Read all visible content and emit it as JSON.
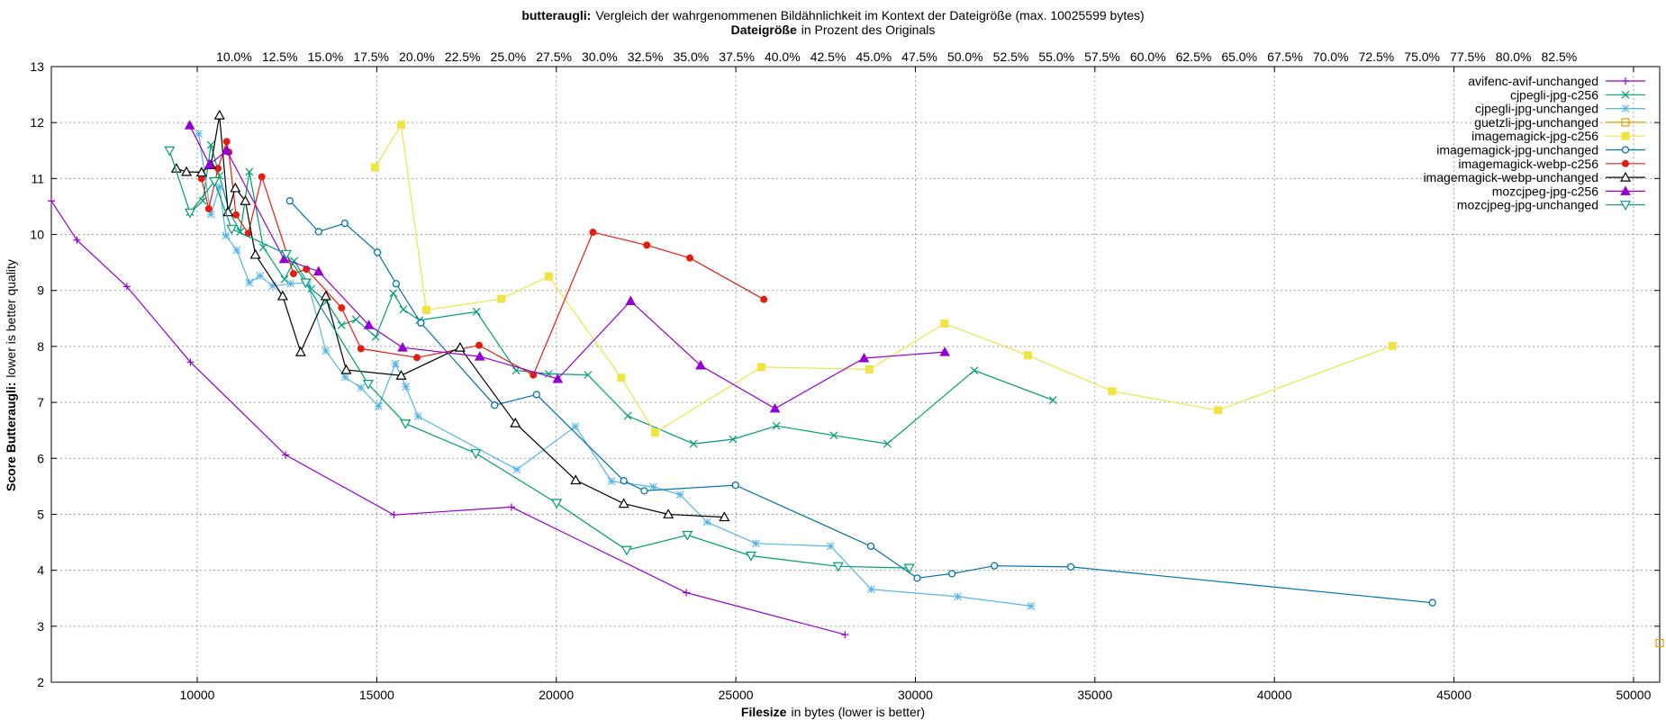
{
  "chart_data": {
    "type": "line",
    "title_bold": "butteraugli:",
    "title_rest": "Vergleich der wahrgenommenen Bildähnlichkeit im Kontext der Dateigröße (max. 10025599 bytes)",
    "x2label_bold": "Dateigröße",
    "x2label_rest": "in Prozent des Originals",
    "xlabel_bold": "Filesize",
    "xlabel_rest": "in bytes (lower is better)",
    "ylabel_bold": "Score Butteraugli:",
    "ylabel_rest": "lower is better quality",
    "xlim": [
      5937,
      50729
    ],
    "ylim": [
      2,
      13
    ],
    "grid": true,
    "legend_position": "top-right",
    "x_ticks": [
      {
        "value": 10000,
        "label": "10000"
      },
      {
        "value": 15000,
        "label": "15000"
      },
      {
        "value": 20000,
        "label": "20000"
      },
      {
        "value": 25000,
        "label": "25000"
      },
      {
        "value": 30000,
        "label": "30000"
      },
      {
        "value": 35000,
        "label": "35000"
      },
      {
        "value": 40000,
        "label": "40000"
      },
      {
        "value": 45000,
        "label": "45000"
      },
      {
        "value": 50000,
        "label": "50000"
      }
    ],
    "y_ticks": [
      {
        "value": 2,
        "label": "2"
      },
      {
        "value": 3,
        "label": "3"
      },
      {
        "value": 4,
        "label": "4"
      },
      {
        "value": 5,
        "label": "5"
      },
      {
        "value": 6,
        "label": "6"
      },
      {
        "value": 7,
        "label": "7"
      },
      {
        "value": 8,
        "label": "8"
      },
      {
        "value": 9,
        "label": "9"
      },
      {
        "value": 10,
        "label": "10"
      },
      {
        "value": 11,
        "label": "11"
      },
      {
        "value": 12,
        "label": "12"
      },
      {
        "value": 13,
        "label": "13"
      }
    ],
    "x2_ticks": [
      {
        "value": 10.0,
        "label": "10.0%"
      },
      {
        "value": 12.5,
        "label": "12.5%"
      },
      {
        "value": 15.0,
        "label": "15.0%"
      },
      {
        "value": 17.5,
        "label": "17.5%"
      },
      {
        "value": 20.0,
        "label": "20.0%"
      },
      {
        "value": 22.5,
        "label": "22.5%"
      },
      {
        "value": 25.0,
        "label": "25.0%"
      },
      {
        "value": 27.5,
        "label": "27.5%"
      },
      {
        "value": 30.0,
        "label": "30.0%"
      },
      {
        "value": 32.5,
        "label": "32.5%"
      },
      {
        "value": 35.0,
        "label": "35.0%"
      },
      {
        "value": 37.5,
        "label": "37.5%"
      },
      {
        "value": 40.0,
        "label": "40.0%"
      },
      {
        "value": 42.5,
        "label": "42.5%"
      },
      {
        "value": 45.0,
        "label": "45.0%"
      },
      {
        "value": 47.5,
        "label": "47.5%"
      },
      {
        "value": 50.0,
        "label": "50.0%"
      },
      {
        "value": 52.5,
        "label": "52.5%"
      },
      {
        "value": 55.0,
        "label": "55.0%"
      },
      {
        "value": 57.5,
        "label": "57.5%"
      },
      {
        "value": 60.0,
        "label": "60.0%"
      },
      {
        "value": 62.5,
        "label": "62.5%"
      },
      {
        "value": 65.0,
        "label": "65.0%"
      },
      {
        "value": 67.5,
        "label": "67.5%"
      },
      {
        "value": 70.0,
        "label": "70.0%"
      },
      {
        "value": 72.5,
        "label": "72.5%"
      },
      {
        "value": 75.0,
        "label": "75.0%"
      },
      {
        "value": 77.5,
        "label": "77.5%"
      },
      {
        "value": 80.0,
        "label": "80.0%"
      },
      {
        "value": 82.5,
        "label": "82.5%"
      }
    ],
    "x2_scale": {
      "unit_at_0": 0.0,
      "unit_at_end": 88.0
    },
    "series": [
      {
        "name": "avifenc-avif-unchanged",
        "color": "#9400d3",
        "marker": "plus",
        "x": [
          5937,
          6650,
          8040,
          9810,
          12460,
          15480,
          18750,
          23620,
          28040
        ],
        "y": [
          10.6,
          9.9,
          9.07,
          7.72,
          6.06,
          4.99,
          5.13,
          3.6,
          2.85
        ]
      },
      {
        "name": "cjpegli-jpg-c256",
        "color": "#009e73",
        "marker": "x",
        "x": [
          9800,
          10160,
          10380,
          10620,
          10900,
          11200,
          11450,
          11840,
          12430,
          12700,
          13180,
          13600,
          14020,
          14420,
          14970,
          15460,
          15740,
          16190,
          17780,
          18880,
          19790,
          20880,
          21990,
          23820,
          24920,
          26130,
          27730,
          29220,
          31640,
          33830
        ],
        "y": [
          10.4,
          10.6,
          11.6,
          11.05,
          10.4,
          10.05,
          11.12,
          9.77,
          9.2,
          9.53,
          9.03,
          8.8,
          8.38,
          8.48,
          8.17,
          8.95,
          8.66,
          8.47,
          8.62,
          7.57,
          7.51,
          7.49,
          6.76,
          6.26,
          6.34,
          6.58,
          6.41,
          6.26,
          7.57,
          7.04
        ]
      },
      {
        "name": "cjpegli-jpg-unchanged",
        "color": "#56b4e9",
        "marker": "star",
        "x": [
          10040,
          10380,
          10620,
          10800,
          11100,
          11450,
          11750,
          12100,
          12600,
          13080,
          13580,
          14120,
          14560,
          15050,
          15520,
          15810,
          16150,
          18900,
          20530,
          21540,
          22700,
          23450,
          24200,
          25560,
          27640,
          28770,
          31180,
          33220
        ],
        "y": [
          11.8,
          10.36,
          10.85,
          9.98,
          9.72,
          9.14,
          9.26,
          9.08,
          9.12,
          9.14,
          7.92,
          7.45,
          7.26,
          6.93,
          7.69,
          7.28,
          6.75,
          5.8,
          6.57,
          5.59,
          5.49,
          5.35,
          4.86,
          4.48,
          4.43,
          3.66,
          3.53,
          3.36
        ]
      },
      {
        "name": "guetzli-jpg-unchanged",
        "color": "#e69f00",
        "marker": "square",
        "x": [
          50729
        ],
        "y": [
          2.7
        ]
      },
      {
        "name": "imagemagick-jpg-c256",
        "color": "#f0e442",
        "marker": "squarefilled",
        "x": [
          14950,
          15680,
          16380,
          18470,
          19790,
          21810,
          22750,
          25710,
          28720,
          30810,
          33130,
          35480,
          38430,
          43290
        ],
        "y": [
          11.2,
          11.96,
          8.65,
          8.85,
          9.25,
          7.44,
          6.46,
          7.63,
          7.59,
          8.41,
          7.84,
          7.2,
          6.86,
          8.01
        ]
      },
      {
        "name": "imagemagick-jpg-unchanged",
        "color": "#0072b2",
        "marker": "circle",
        "x": [
          12580,
          13380,
          14110,
          15020,
          15540,
          16230,
          18280,
          19450,
          21880,
          22450,
          24990,
          28760,
          30050,
          31020,
          32200,
          34330,
          44400
        ],
        "y": [
          10.6,
          10.05,
          10.2,
          9.68,
          9.12,
          8.42,
          6.95,
          7.14,
          5.6,
          5.42,
          5.52,
          4.43,
          3.86,
          3.94,
          4.08,
          4.06,
          3.42
        ]
      },
      {
        "name": "imagemagick-webp-c256",
        "color": "#e51e10",
        "marker": "circlefilled",
        "x": [
          10120,
          10320,
          10580,
          10820,
          10880,
          11080,
          11420,
          11800,
          12680,
          13040,
          14020,
          14560,
          16120,
          17850,
          19360,
          21020,
          22520,
          23720,
          25780
        ],
        "y": [
          11.0,
          10.46,
          11.18,
          11.66,
          11.47,
          10.35,
          10.02,
          11.03,
          9.3,
          9.38,
          8.69,
          7.96,
          7.8,
          8.02,
          7.49,
          10.04,
          9.81,
          9.58,
          8.84
        ]
      },
      {
        "name": "imagemagick-webp-unchanged",
        "color": "#000000",
        "marker": "triangle",
        "x": [
          9420,
          9700,
          10120,
          10380,
          10620,
          10860,
          11060,
          11340,
          11620,
          12380,
          12880,
          13580,
          14150,
          15680,
          17320,
          18860,
          20540,
          21880,
          23120,
          24680
        ],
        "y": [
          11.18,
          11.12,
          11.11,
          11.24,
          12.13,
          10.4,
          10.83,
          10.6,
          9.64,
          8.9,
          7.9,
          8.9,
          7.58,
          7.48,
          7.98,
          6.63,
          5.61,
          5.19,
          5.0,
          4.95
        ]
      },
      {
        "name": "mozcjpeg-jpg-c256",
        "color": "#9400d3",
        "marker": "trianglefilled",
        "x": [
          9790,
          10340,
          10820,
          12420,
          13380,
          14780,
          15720,
          17870,
          20040,
          22070,
          24020,
          26090,
          28570,
          30820
        ],
        "y": [
          11.95,
          11.25,
          11.5,
          9.56,
          9.34,
          8.38,
          7.98,
          7.82,
          7.42,
          8.81,
          7.66,
          6.89,
          7.79,
          7.9
        ]
      },
      {
        "name": "mozcjpeg-jpg-unchanged",
        "color": "#009e73",
        "marker": "invtriangle",
        "x": [
          9230,
          9800,
          10480,
          10960,
          12480,
          13020,
          14760,
          15800,
          17760,
          20010,
          21960,
          23650,
          25420,
          27850,
          29830
        ],
        "y": [
          11.5,
          10.39,
          10.95,
          10.1,
          9.65,
          9.14,
          7.33,
          6.62,
          6.09,
          5.2,
          4.36,
          4.63,
          4.26,
          4.07,
          4.04
        ]
      }
    ]
  }
}
